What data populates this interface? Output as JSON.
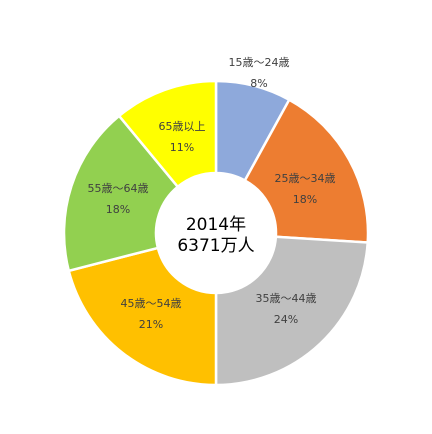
{
  "chart_data": {
    "type": "pie",
    "style": "doughnut",
    "center_text": [
      "2014年",
      "6371万人"
    ],
    "categories": [
      "15歳～24歳",
      "25歳～34歳",
      "35歳～44歳",
      "45歳～54歳",
      "55歳～64歳",
      "65歳以上"
    ],
    "values": [
      8,
      18,
      24,
      21,
      18,
      11
    ],
    "value_labels": [
      "8%",
      "18%",
      "24%",
      "21%",
      "18%",
      "11%"
    ],
    "colors": [
      "#8EA9DB",
      "#ED7D31",
      "#BFBFBF",
      "#FFC000",
      "#92D050",
      "#FFFF00"
    ],
    "legend": "none",
    "start_angle_deg": 0,
    "direction": "clockwise"
  }
}
